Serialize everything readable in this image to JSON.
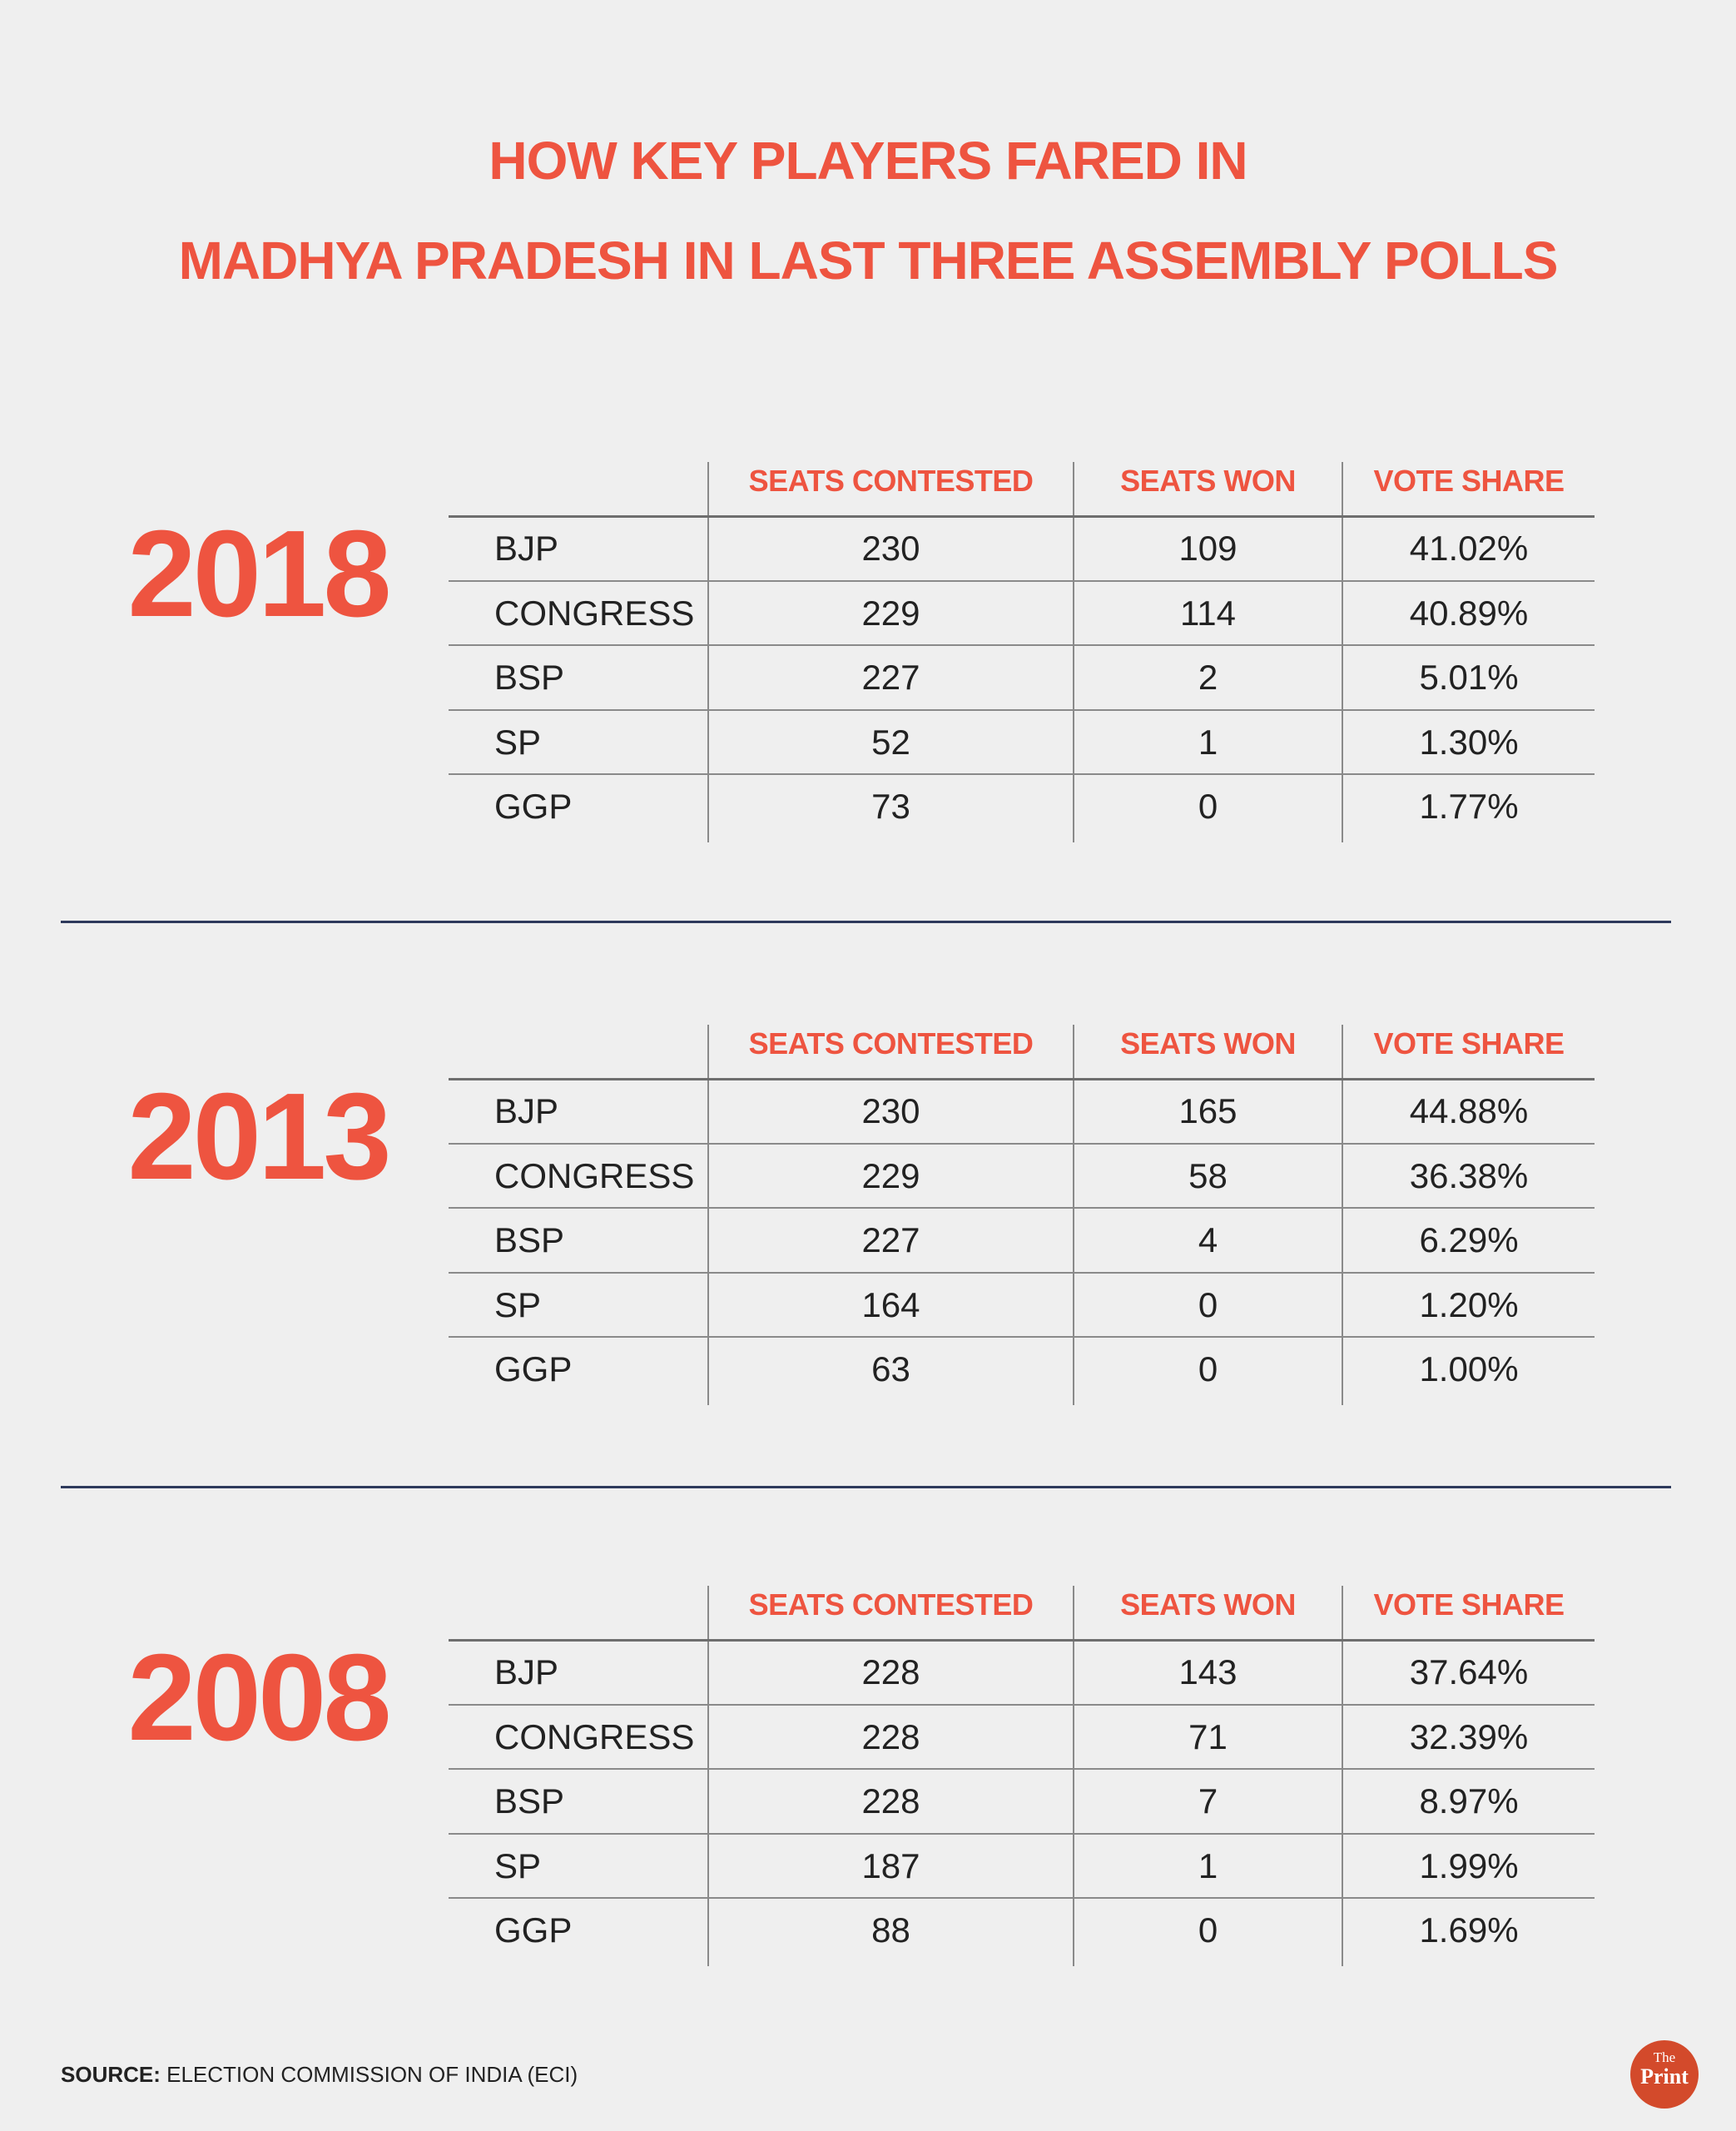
{
  "title": {
    "line1": "HOW KEY PLAYERS FARED IN",
    "line2": "MADHYA PRADESH IN LAST THREE ASSEMBLY POLLS"
  },
  "columns": [
    "SEATS CONTESTED",
    "SEATS WON",
    "VOTE SHARE"
  ],
  "sections": [
    {
      "year": "2018",
      "rows": [
        {
          "party": "BJP",
          "contested": "230",
          "won": "109",
          "share": "41.02%"
        },
        {
          "party": "CONGRESS",
          "contested": "229",
          "won": "114",
          "share": "40.89%"
        },
        {
          "party": "BSP",
          "contested": "227",
          "won": "2",
          "share": "5.01%"
        },
        {
          "party": "SP",
          "contested": "52",
          "won": "1",
          "share": "1.30%"
        },
        {
          "party": "GGP",
          "contested": "73",
          "won": "0",
          "share": "1.77%"
        }
      ]
    },
    {
      "year": "2013",
      "rows": [
        {
          "party": "BJP",
          "contested": "230",
          "won": "165",
          "share": "44.88%"
        },
        {
          "party": "CONGRESS",
          "contested": "229",
          "won": "58",
          "share": "36.38%"
        },
        {
          "party": "BSP",
          "contested": "227",
          "won": "4",
          "share": "6.29%"
        },
        {
          "party": "SP",
          "contested": "164",
          "won": "0",
          "share": "1.20%"
        },
        {
          "party": "GGP",
          "contested": "63",
          "won": "0",
          "share": "1.00%"
        }
      ]
    },
    {
      "year": "2008",
      "rows": [
        {
          "party": "BJP",
          "contested": "228",
          "won": "143",
          "share": "37.64%"
        },
        {
          "party": "CONGRESS",
          "contested": "228",
          "won": "71",
          "share": "32.39%"
        },
        {
          "party": "BSP",
          "contested": "228",
          "won": "7",
          "share": "8.97%"
        },
        {
          "party": "SP",
          "contested": "187",
          "won": "1",
          "share": "1.99%"
        },
        {
          "party": "GGP",
          "contested": "88",
          "won": "0",
          "share": "1.69%"
        }
      ]
    }
  ],
  "source": {
    "label": "SOURCE:",
    "text": " ELECTION COMMISSION OF INDIA (ECI)"
  },
  "logo": {
    "the": "The",
    "print": "Print"
  },
  "colors": {
    "accent": "#ee5440",
    "divider": "#2e3a5c",
    "logo": "#d34a2b",
    "background": "#efefef"
  }
}
